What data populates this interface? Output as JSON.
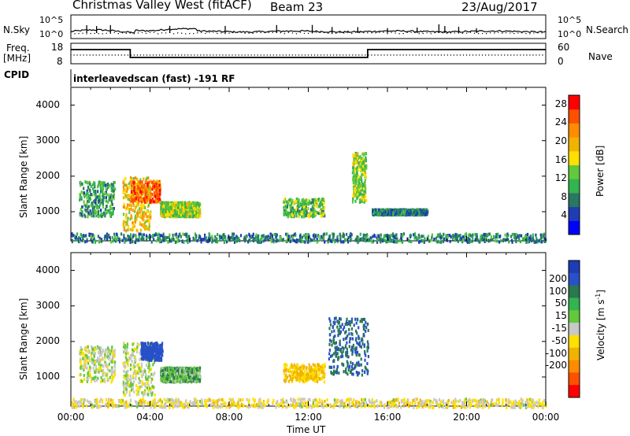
{
  "header": {
    "station": "Christmas Valley West (fitACF)",
    "beam": "Beam 23",
    "date": "23/Aug/2017"
  },
  "panels": {
    "nsky_label": "N.Sky",
    "nsearch_label": "N.Search",
    "freq_label_1": "Freq.",
    "freq_label_2": "[MHz]",
    "nave_label": "Nave",
    "cpid_label": "CPID",
    "scan_text": "interleavedscan (fast) -191 RF",
    "nsky_ticks": [
      "10^5",
      "10^0"
    ],
    "nsearch_ticks": [
      "10^5",
      "10^0"
    ],
    "freq_ticks": [
      "18",
      "8"
    ],
    "nave_ticks": [
      "60",
      "0"
    ]
  },
  "chart_data": [
    {
      "type": "heatmap",
      "title": "",
      "xlabel": "Time UT",
      "ylabel": "Slant Range [km]",
      "x_ticks": [
        "00:00",
        "04:00",
        "08:00",
        "12:00",
        "16:00",
        "20:00",
        "00:00"
      ],
      "xlim_hours": [
        0,
        24
      ],
      "y_ticks": [
        1000,
        2000,
        3000,
        4000
      ],
      "ylim_km": [
        180,
        4500
      ],
      "colorbar": {
        "label": "Power [dB]",
        "ticks": [
          4,
          8,
          12,
          16,
          20,
          24,
          28
        ],
        "range": [
          0,
          30
        ],
        "colors": [
          "#0000ff",
          "#1e3cb4",
          "#287864",
          "#32b450",
          "#64c83c",
          "#ffe000",
          "#f0b400",
          "#ff8c00",
          "#ff5000",
          "#ff0000"
        ]
      },
      "scatter_regions": [
        {
          "t_start": 0.4,
          "t_end": 2.2,
          "r_min": 900,
          "r_max": 1900,
          "value": 10
        },
        {
          "t_start": 2.6,
          "t_end": 4.0,
          "r_min": 500,
          "r_max": 2000,
          "value": 18
        },
        {
          "t_start": 3.0,
          "t_end": 4.5,
          "r_min": 1300,
          "r_max": 1900,
          "value": 24
        },
        {
          "t_start": 4.5,
          "t_end": 6.5,
          "r_min": 900,
          "r_max": 1300,
          "value": 14
        },
        {
          "t_start": 10.7,
          "t_end": 12.8,
          "r_min": 900,
          "r_max": 1400,
          "value": 12
        },
        {
          "t_start": 14.2,
          "t_end": 14.9,
          "r_min": 1300,
          "r_max": 2700,
          "value": 14
        },
        {
          "t_start": 15.2,
          "t_end": 18.0,
          "r_min": 950,
          "r_max": 1100,
          "value": 8
        },
        {
          "t_start": 0.0,
          "t_end": 24.0,
          "r_min": 180,
          "r_max": 420,
          "value": 8
        }
      ]
    },
    {
      "type": "heatmap",
      "title": "",
      "xlabel": "Time UT",
      "ylabel": "Slant Range [km]",
      "x_ticks": [
        "00:00",
        "04:00",
        "08:00",
        "12:00",
        "16:00",
        "20:00",
        "00:00"
      ],
      "xlim_hours": [
        0,
        24
      ],
      "y_ticks": [
        1000,
        2000,
        3000,
        4000
      ],
      "ylim_km": [
        180,
        4500
      ],
      "colorbar": {
        "label": "Velocity [m s^-1]",
        "ticks": [
          200,
          100,
          50,
          15,
          -15,
          -50,
          -100,
          -200
        ],
        "colors": [
          "#1e3cb4",
          "#2850c8",
          "#287850",
          "#32b450",
          "#64c83c",
          "#c8c8c8",
          "#ffe000",
          "#f0b400",
          "#ff8c00",
          "#ff5000",
          "#ff0000"
        ]
      },
      "scatter_regions": [
        {
          "t_start": 0.4,
          "t_end": 2.2,
          "r_min": 900,
          "r_max": 1900,
          "value": 0
        },
        {
          "t_start": 2.6,
          "t_end": 4.2,
          "r_min": 500,
          "r_max": 2000,
          "value": 0
        },
        {
          "t_start": 3.5,
          "t_end": 4.6,
          "r_min": 1500,
          "r_max": 2000,
          "value": 150
        },
        {
          "t_start": 4.5,
          "t_end": 6.5,
          "r_min": 900,
          "r_max": 1300,
          "value": 40
        },
        {
          "t_start": 10.7,
          "t_end": 12.8,
          "r_min": 900,
          "r_max": 1400,
          "value": -60
        },
        {
          "t_start": 13.0,
          "t_end": 15.0,
          "r_min": 1100,
          "r_max": 2700,
          "value": 100
        },
        {
          "t_start": 0.0,
          "t_end": 24.0,
          "r_min": 180,
          "r_max": 420,
          "value": -20
        }
      ]
    }
  ]
}
